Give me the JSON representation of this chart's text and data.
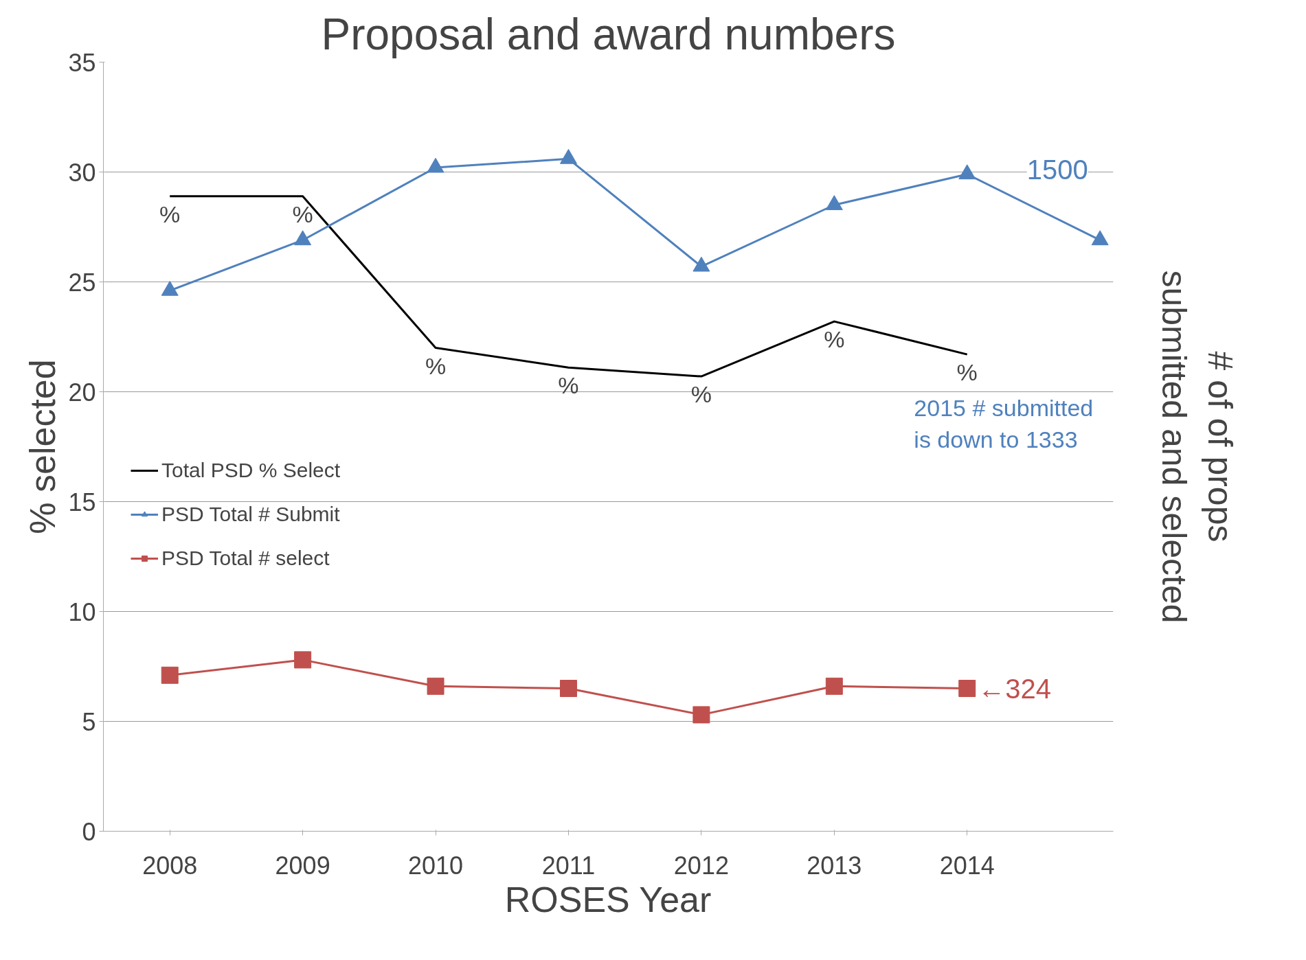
{
  "chart_data": {
    "type": "line",
    "title": "Proposal and award numbers",
    "xlabel": "ROSES Year",
    "ylabel": "% selected",
    "y2label": "# of of props\nsubmitted and selected",
    "categories": [
      "2008",
      "2009",
      "2010",
      "2011",
      "2012",
      "2013",
      "2014",
      null
    ],
    "series": [
      {
        "name": "Total PSD % Select",
        "color": "#000000",
        "marker": "none",
        "values": [
          28.9,
          28.9,
          22.0,
          21.1,
          20.7,
          23.2,
          21.7,
          null
        ]
      },
      {
        "name": "PSD Total # Submit",
        "color": "#4f81bd",
        "marker": "triangle",
        "values": [
          24.6,
          26.9,
          30.2,
          30.6,
          25.7,
          28.5,
          29.9,
          26.9
        ]
      },
      {
        "name": "PSD Total # select",
        "color": "#c0504d",
        "marker": "square",
        "values": [
          7.1,
          7.8,
          6.6,
          6.5,
          5.3,
          6.6,
          6.5,
          null
        ]
      }
    ],
    "ylim": [
      0,
      35
    ],
    "yticks": [
      0,
      5,
      10,
      15,
      20,
      25,
      30,
      35
    ],
    "grid": "y",
    "legend": "left",
    "annotations": [
      {
        "text": "%",
        "x": "2008",
        "y": 28.9
      },
      {
        "text": "%",
        "x": "2009",
        "y": 28.9
      },
      {
        "text": "%",
        "x": "2010",
        "y": 22.0
      },
      {
        "text": "%",
        "x": "2011",
        "y": 21.1
      },
      {
        "text": "%",
        "x": "2012",
        "y": 20.7
      },
      {
        "text": "%",
        "x": "2013",
        "y": 23.2
      },
      {
        "text": "%",
        "x": "2014",
        "y": 21.7
      },
      "1500",
      "2015 # submitted\nis down to 1333",
      {
        "text": "←324",
        "x": "2014",
        "y": 6.5
      }
    ]
  }
}
